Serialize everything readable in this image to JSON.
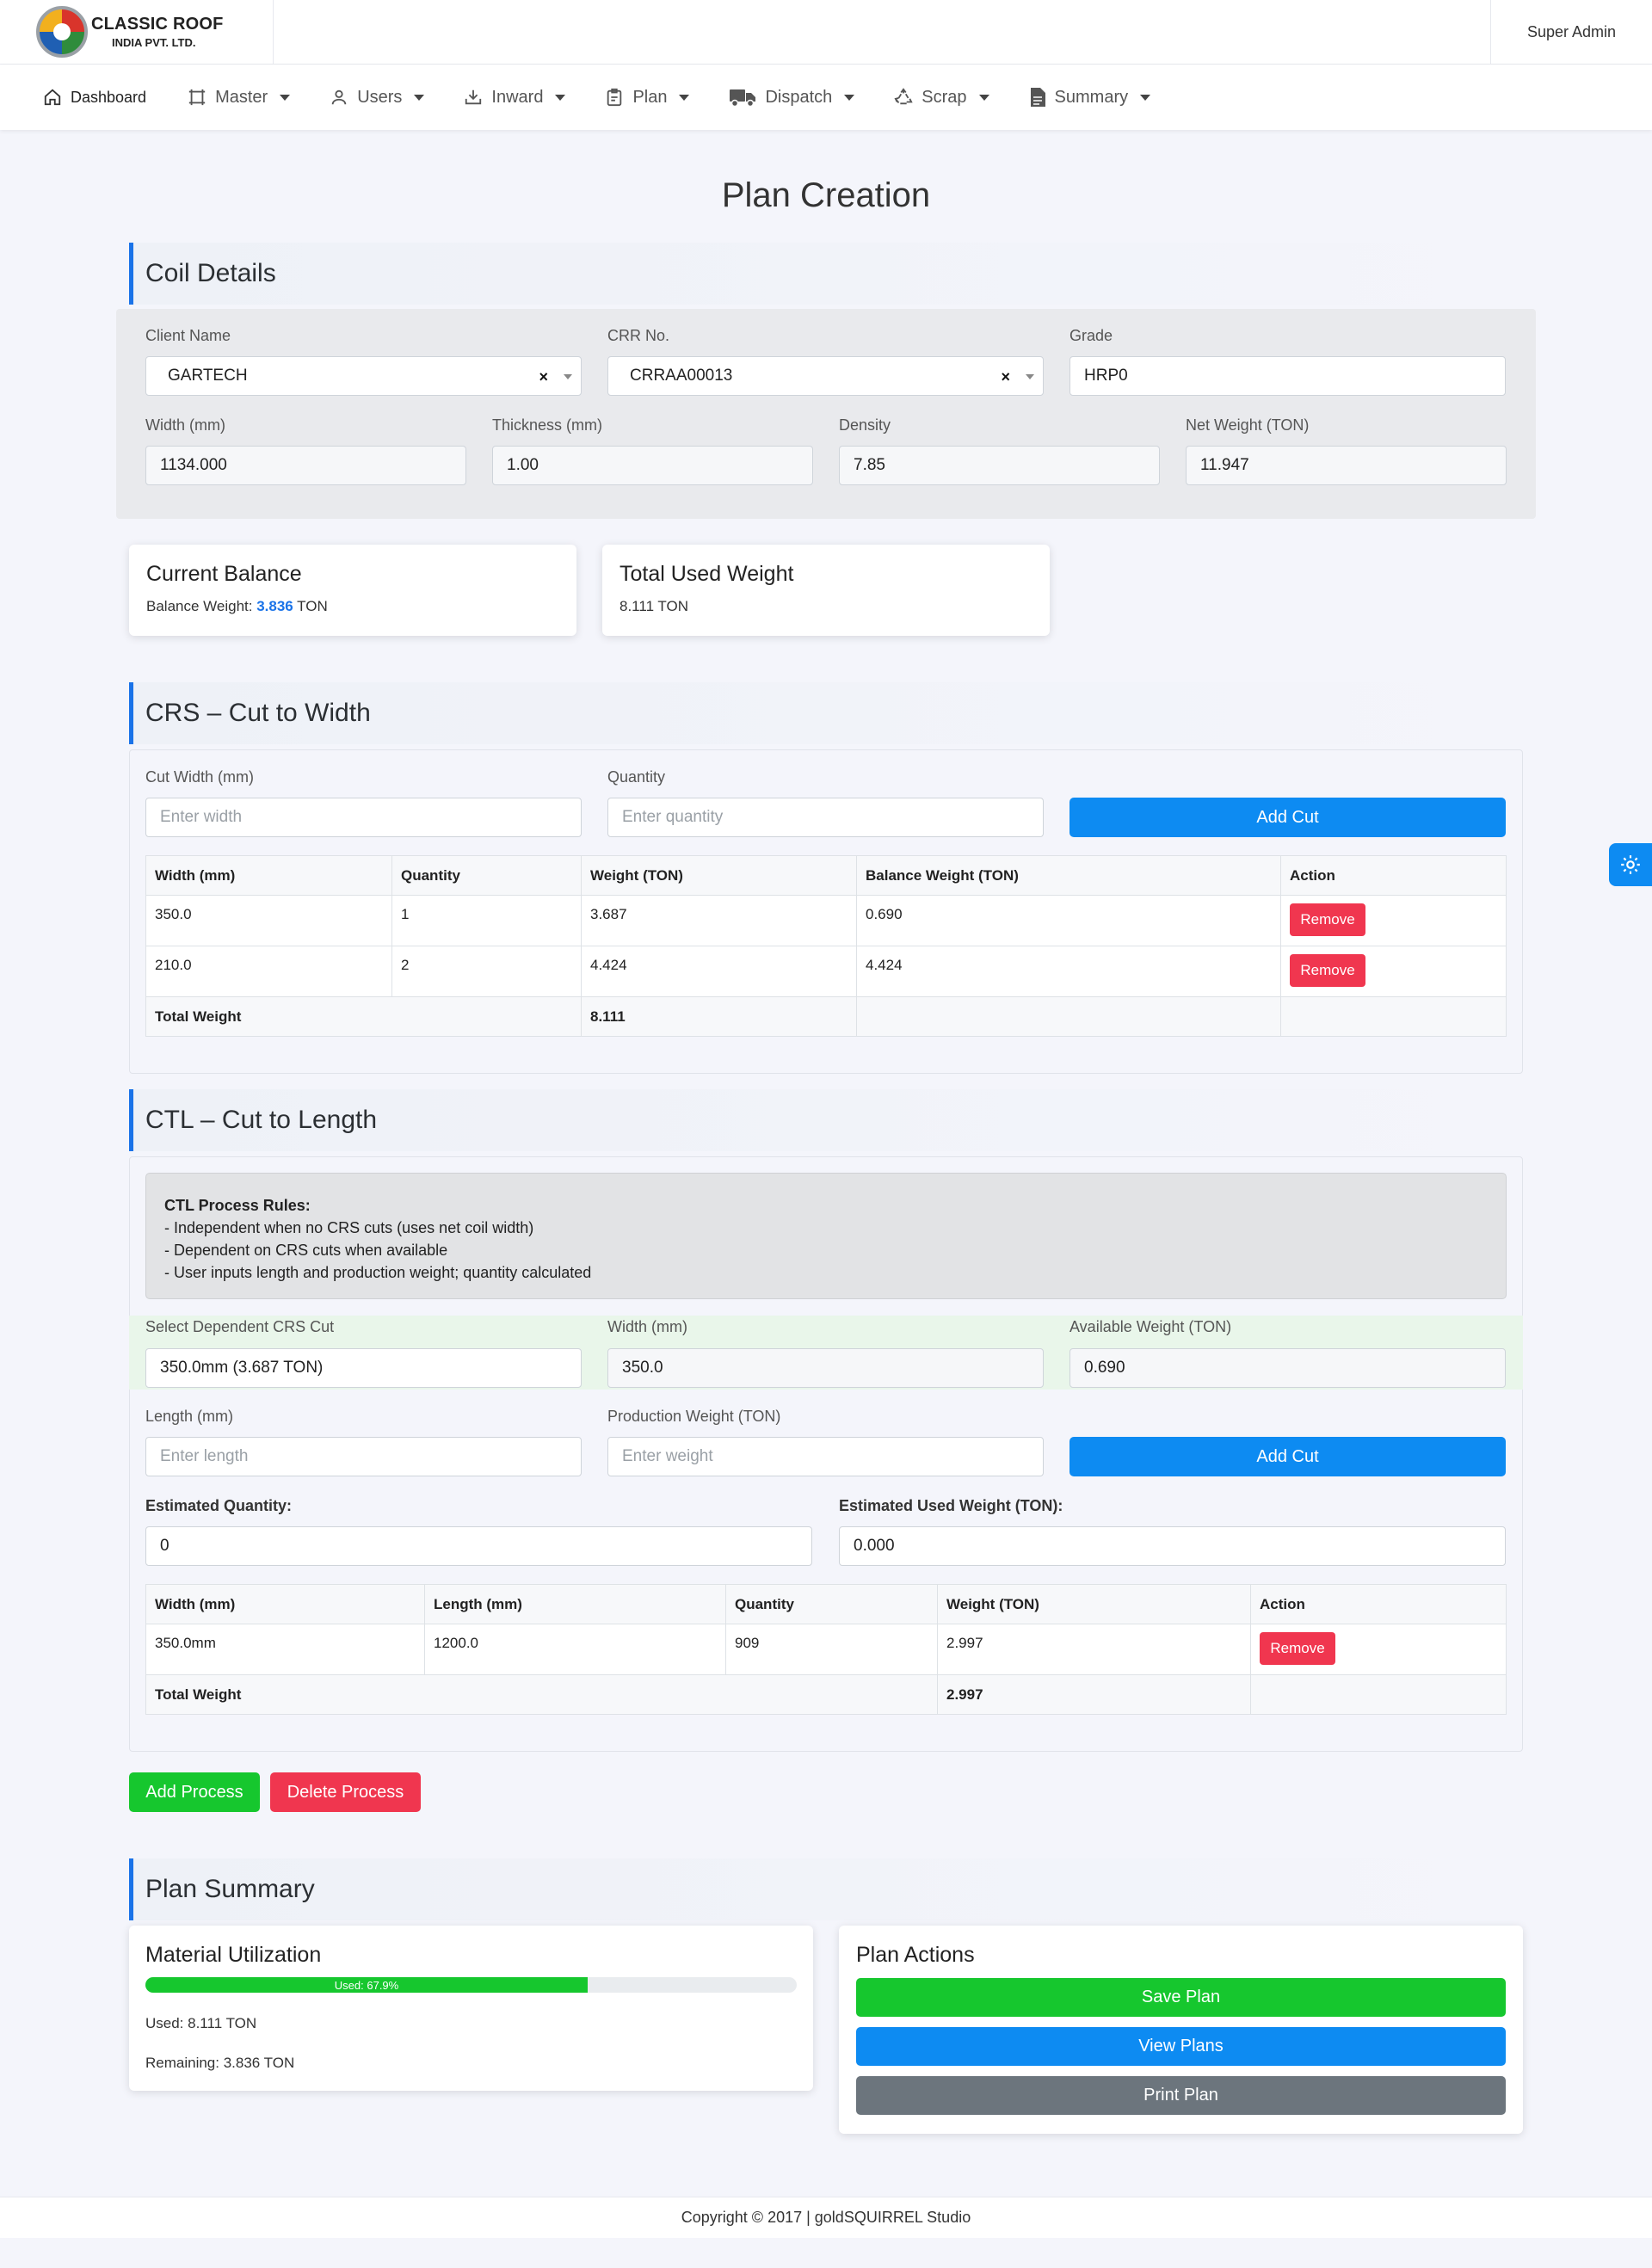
{
  "brand": {
    "name": "CLASSIC ROOF",
    "sub": "INDIA PVT. LTD."
  },
  "user": {
    "name": "Super Admin"
  },
  "nav": {
    "dashboard": "Dashboard",
    "master": "Master",
    "users": "Users",
    "inward": "Inward",
    "plan": "Plan",
    "dispatch": "Dispatch",
    "scrap": "Scrap",
    "summary": "Summary"
  },
  "page": {
    "title": "Plan Creation"
  },
  "coil": {
    "heading": "Coil Details",
    "client_label": "Client Name",
    "client_value": "GARTECH",
    "crr_label": "CRR No.",
    "crr_value": "CRRAA00013",
    "grade_label": "Grade",
    "grade_value": "HRP0",
    "width_label": "Width (mm)",
    "width_value": "1134.000",
    "thickness_label": "Thickness (mm)",
    "thickness_value": "1.00",
    "density_label": "Density",
    "density_value": "7.85",
    "net_label": "Net Weight (TON)",
    "net_value": "11.947",
    "clear_symbol": "×"
  },
  "balance": {
    "title": "Current Balance",
    "label": "Balance Weight: ",
    "value": "3.836",
    "unit": " TON"
  },
  "used": {
    "title": "Total Used Weight",
    "value": "8.111 TON"
  },
  "crs": {
    "heading": "CRS – Cut to Width",
    "width_label": "Cut Width (mm)",
    "width_placeholder": "Enter width",
    "qty_label": "Quantity",
    "qty_placeholder": "Enter quantity",
    "add_label": "Add Cut",
    "columns": [
      "Width (mm)",
      "Quantity",
      "Weight (TON)",
      "Balance Weight (TON)",
      "Action"
    ],
    "rows": [
      {
        "width": "350.0",
        "qty": "1",
        "weight": "3.687",
        "balance": "0.690",
        "action": "Remove"
      },
      {
        "width": "210.0",
        "qty": "2",
        "weight": "4.424",
        "balance": "4.424",
        "action": "Remove"
      }
    ],
    "total_label": "Total Weight",
    "total_value": "8.111"
  },
  "ctl": {
    "heading": "CTL – Cut to Length",
    "rules_title": "CTL Process Rules:",
    "rules": [
      "- Independent when no CRS cuts (uses net coil width)",
      "- Dependent on CRS cuts when available",
      "- User inputs length and production weight; quantity calculated"
    ],
    "dep_label": "Select Dependent CRS Cut",
    "dep_value": "350.0mm (3.687 TON)",
    "width_label": "Width (mm)",
    "width_value": "350.0",
    "avail_label": "Available Weight (TON)",
    "avail_value": "0.690",
    "length_label": "Length (mm)",
    "length_placeholder": "Enter length",
    "prod_label": "Production Weight (TON)",
    "prod_placeholder": "Enter weight",
    "add_label": "Add Cut",
    "est_qty_label": "Estimated Quantity:",
    "est_qty_value": "0",
    "est_used_label": "Estimated Used Weight (TON):",
    "est_used_value": "0.000",
    "columns": [
      "Width (mm)",
      "Length (mm)",
      "Quantity",
      "Weight (TON)",
      "Action"
    ],
    "rows": [
      {
        "width": "350.0mm",
        "length": "1200.0",
        "qty": "909",
        "weight": "2.997",
        "action": "Remove"
      }
    ],
    "total_label": "Total Weight",
    "total_value": "2.997"
  },
  "process": {
    "add_label": "Add Process",
    "delete_label": "Delete Process"
  },
  "summary": {
    "heading": "Plan Summary",
    "util_title": "Material Utilization",
    "progress_label": "Used: 67.9%",
    "progress_fraction": 0.679,
    "used_text": "Used: 8.111 TON",
    "remaining_text": "Remaining: 3.836 TON",
    "actions_title": "Plan Actions",
    "save_label": "Save Plan",
    "view_label": "View Plans",
    "print_label": "Print Plan"
  },
  "footer": {
    "text": "Copyright © 2017 | goldSQUIRREL Studio"
  },
  "colors": {
    "primary": "#0d8bf2",
    "success": "#16c72e",
    "danger": "#f0364f",
    "secondary": "#6c757d",
    "accent": "#1a73e8"
  }
}
